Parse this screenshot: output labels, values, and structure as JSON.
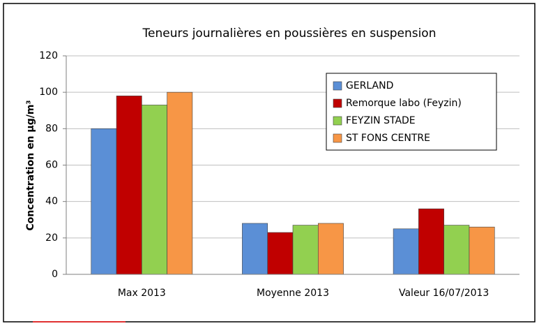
{
  "chart_data": {
    "type": "bar",
    "title": "Teneurs journalières en poussières en suspension",
    "y_label": "Concentration en µg/m³",
    "categories": [
      "Max 2013",
      "Moyenne 2013",
      "Valeur 16/07/2013"
    ],
    "series": [
      {
        "name": "GERLAND",
        "color": "#5b8fd6",
        "values": [
          80,
          28,
          25
        ]
      },
      {
        "name": "Remorque labo (Feyzin)",
        "color": "#c00000",
        "values": [
          98,
          23,
          36
        ]
      },
      {
        "name": "FEYZIN STADE",
        "color": "#92d050",
        "values": [
          93,
          27,
          27
        ]
      },
      {
        "name": "ST FONS CENTRE",
        "color": "#f79646",
        "values": [
          100,
          28,
          26
        ]
      }
    ],
    "ylim": [
      0,
      120
    ],
    "yticks": [
      0,
      20,
      40,
      60,
      80,
      100,
      120
    ],
    "grid": true,
    "legend": "upper right"
  }
}
